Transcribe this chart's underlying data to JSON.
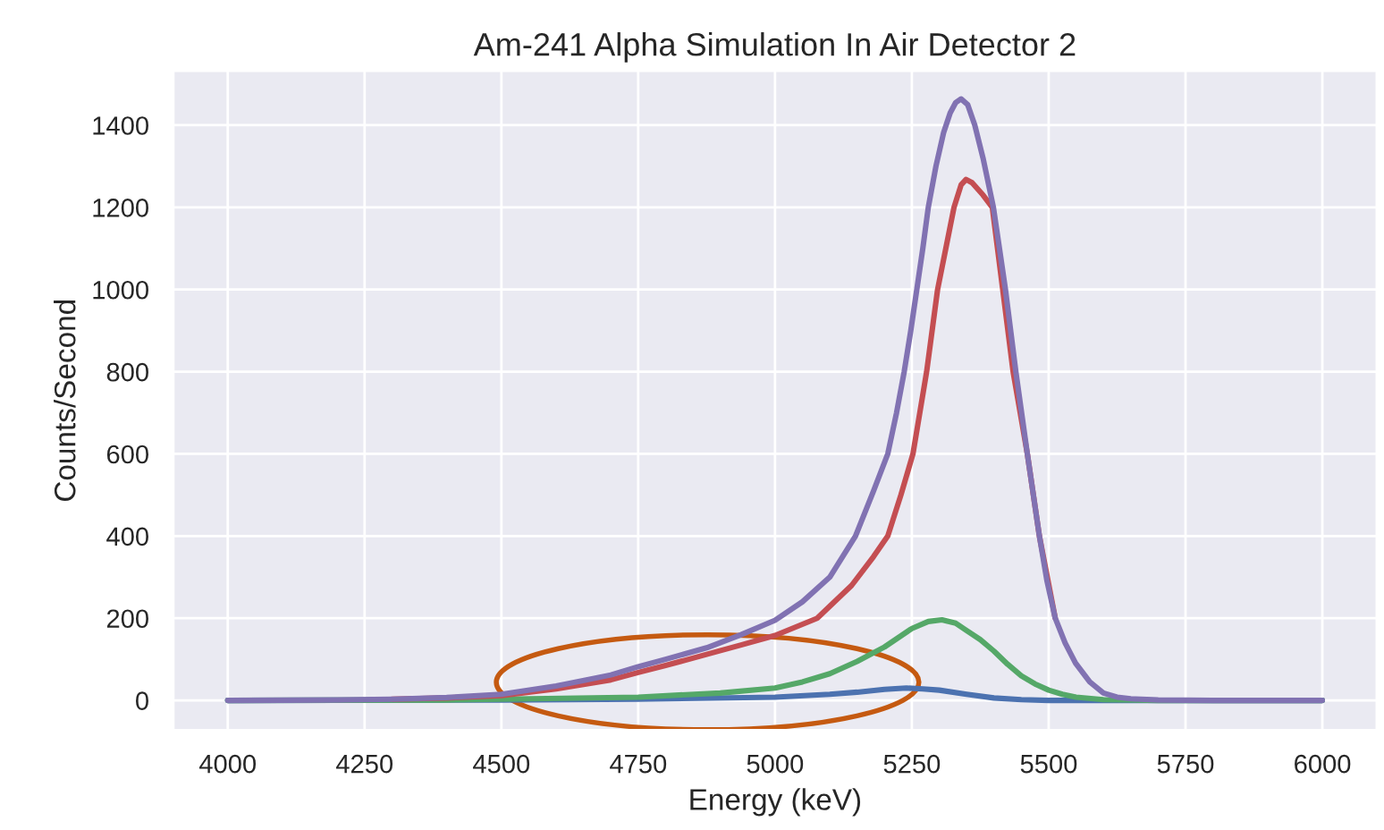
{
  "chart_data": {
    "type": "line",
    "title": "Am-241 Alpha Simulation In Air Detector 2",
    "xlabel": "Energy (keV)",
    "ylabel": "Counts/Second",
    "xlim": [
      3900,
      6100
    ],
    "xticks": [
      4000,
      4250,
      4500,
      4750,
      5000,
      5250,
      5500,
      5750,
      6000
    ],
    "ylim": [
      -73,
      1533
    ],
    "yticks": [
      0,
      200,
      400,
      600,
      800,
      1000,
      1200,
      1400
    ],
    "grid": true,
    "line_style": "solid",
    "series": [
      {
        "color": "#4c72b0",
        "x": [
          4000,
          4500,
          4750,
          5000,
          5100,
          5150,
          5200,
          5240,
          5270,
          5300,
          5350,
          5400,
          5450,
          5500,
          6000
        ],
        "values": [
          0,
          1,
          3,
          8,
          15,
          20,
          27,
          30,
          28,
          25,
          15,
          6,
          2,
          0,
          0
        ]
      },
      {
        "color": "#55a868",
        "x": [
          4000,
          4400,
          4500,
          4750,
          4900,
          5000,
          5050,
          5100,
          5150,
          5200,
          5250,
          5280,
          5305,
          5330,
          5350,
          5375,
          5400,
          5425,
          5450,
          5475,
          5500,
          5525,
          5550,
          5600,
          5700,
          6000
        ],
        "values": [
          0,
          1,
          3,
          8,
          18,
          30,
          45,
          65,
          95,
          130,
          175,
          192,
          196,
          188,
          170,
          148,
          120,
          88,
          60,
          40,
          25,
          15,
          8,
          2,
          0,
          0
        ]
      },
      {
        "color": "#c44e52",
        "x": [
          4300,
          4400,
          4500,
          4600,
          4700,
          4750,
          4800,
          4875,
          4938,
          5000,
          5077,
          5140,
          5180,
          5206,
          5230,
          5252,
          5277,
          5297,
          5312,
          5327,
          5340,
          5349,
          5360,
          5380,
          5397,
          5416,
          5435,
          5461,
          5483,
          5512
        ],
        "values": [
          3,
          6,
          12,
          28,
          50,
          68,
          85,
          112,
          135,
          158,
          200,
          280,
          350,
          400,
          500,
          600,
          800,
          1000,
          1100,
          1200,
          1255,
          1268,
          1260,
          1230,
          1200,
          1000,
          800,
          600,
          400,
          200
        ]
      },
      {
        "color": "#8172b2",
        "x": [
          4000,
          4200,
          4300,
          4400,
          4500,
          4600,
          4700,
          4750,
          4800,
          4875,
          4938,
          5000,
          5050,
          5100,
          5147,
          5180,
          5206,
          5222,
          5236,
          5248,
          5259,
          5270,
          5280,
          5294,
          5308,
          5320,
          5330,
          5340,
          5352,
          5365,
          5380,
          5399,
          5410,
          5421,
          5440,
          5461,
          5483,
          5497,
          5512,
          5530,
          5549,
          5575,
          5600,
          5625,
          5650,
          5700,
          5800,
          6000
        ],
        "values": [
          0,
          1,
          3,
          7,
          15,
          35,
          62,
          82,
          100,
          128,
          160,
          195,
          240,
          300,
          400,
          510,
          600,
          700,
          800,
          900,
          1000,
          1100,
          1200,
          1300,
          1382,
          1430,
          1455,
          1464,
          1450,
          1400,
          1320,
          1200,
          1100,
          1000,
          800,
          600,
          400,
          290,
          200,
          140,
          91,
          45,
          18,
          8,
          4,
          1,
          0,
          0
        ]
      }
    ]
  }
}
